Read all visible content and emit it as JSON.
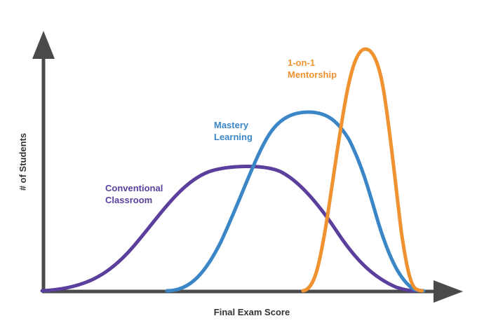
{
  "axes": {
    "x_label": "Final Exam Score",
    "y_label": "# of Students"
  },
  "curves": [
    {
      "id": "conventional",
      "label_lines": [
        "Conventional",
        "Classroom"
      ],
      "color": "#5b3f9c"
    },
    {
      "id": "mastery",
      "label_lines": [
        "Mastery",
        "Learning"
      ],
      "color": "#3b86c6"
    },
    {
      "id": "mentorship",
      "label_lines": [
        "1-on-1",
        "Mentorship"
      ],
      "color": "#ef922f"
    }
  ]
}
